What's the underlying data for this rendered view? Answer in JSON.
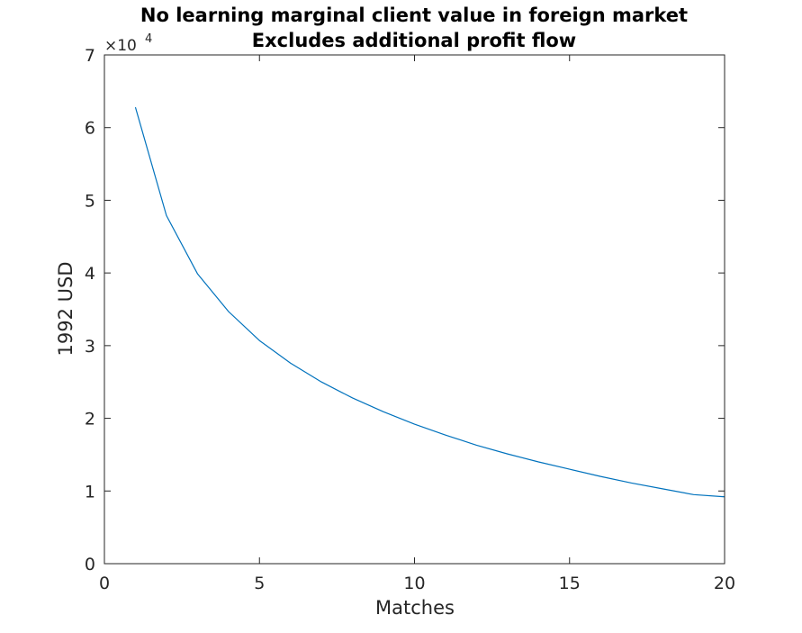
{
  "chart_data": {
    "type": "line",
    "title": "No learning marginal client value in foreign market",
    "subtitle": "Excludes additional profit flow",
    "xlabel": "Matches",
    "ylabel": "1992 USD",
    "xlim": [
      0,
      20
    ],
    "ylim": [
      0,
      7
    ],
    "y_exponent_prefix": "×10",
    "y_exponent_power": "4",
    "x_ticks": [
      0,
      5,
      10,
      15,
      20
    ],
    "y_ticks": [
      0,
      1,
      2,
      3,
      4,
      5,
      6,
      7
    ],
    "x_tick_labels": [
      "0",
      "5",
      "10",
      "15",
      "20"
    ],
    "y_tick_labels": [
      "0",
      "1",
      "2",
      "3",
      "4",
      "5",
      "6",
      "7"
    ],
    "grid": false,
    "line_color": "#0072BD",
    "series": [
      {
        "x": [
          1,
          2,
          3,
          4,
          5,
          6,
          7,
          8,
          9,
          10,
          11,
          12,
          13,
          14,
          15,
          16,
          17,
          18,
          19,
          20
        ],
        "values": [
          6.28,
          4.79,
          3.99,
          3.47,
          3.07,
          2.76,
          2.5,
          2.28,
          2.09,
          1.92,
          1.77,
          1.63,
          1.51,
          1.4,
          1.3,
          1.2,
          1.11,
          1.03,
          0.95,
          0.92
        ]
      }
    ]
  }
}
